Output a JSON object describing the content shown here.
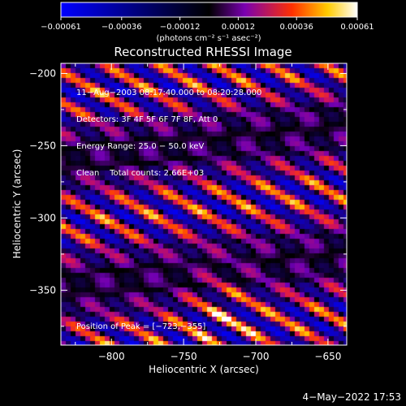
{
  "chart_data": {
    "type": "heatmap",
    "title": "Reconstructed RHESSI Image",
    "xlabel": "Heliocentric X (arcsec)",
    "ylabel": "Heliocentric Y (arcsec)",
    "xlim": [
      -835,
      -637
    ],
    "ylim": [
      -388,
      -193
    ],
    "x_ticks": [
      -800,
      -750,
      -700,
      -650
    ],
    "x_tick_labels": [
      "−800",
      "−750",
      "−700",
      "−650"
    ],
    "y_ticks": [
      -200,
      -250,
      -300,
      -350
    ],
    "y_tick_labels": [
      "−200",
      "−250",
      "−300",
      "−350"
    ],
    "colorbar": {
      "range": [
        -0.00061,
        0.00061
      ],
      "ticks": [
        -0.00061,
        -0.00036,
        -0.00012,
        0.00012,
        0.00036,
        0.00061
      ],
      "tick_labels": [
        "−0.00061",
        "−0.00036",
        "−0.00012",
        "0.00012",
        "0.00036",
        "0.00061"
      ],
      "unit_label": "(photons cm⁻² s⁻¹ asec⁻²)"
    },
    "annotations": [
      "11−Aug−2003 08:17:40.000 to 08:20:28.000",
      "Detectors: 3F 4F 5F 6F 7F 8F, Att 0",
      "Energy Range: 25.0 − 50.0 keV",
      "Clean    Total counts: 2.66E+03"
    ],
    "peak_label": "Position of Peak = [−723,−355]",
    "peak": {
      "x": -723,
      "y": -355
    },
    "colors": [
      "#0000ff",
      "#000000",
      "#7a00b0",
      "#ff4400",
      "#ffd200",
      "#ffffff"
    ]
  },
  "footer_date": "4−May−2022 17:53"
}
